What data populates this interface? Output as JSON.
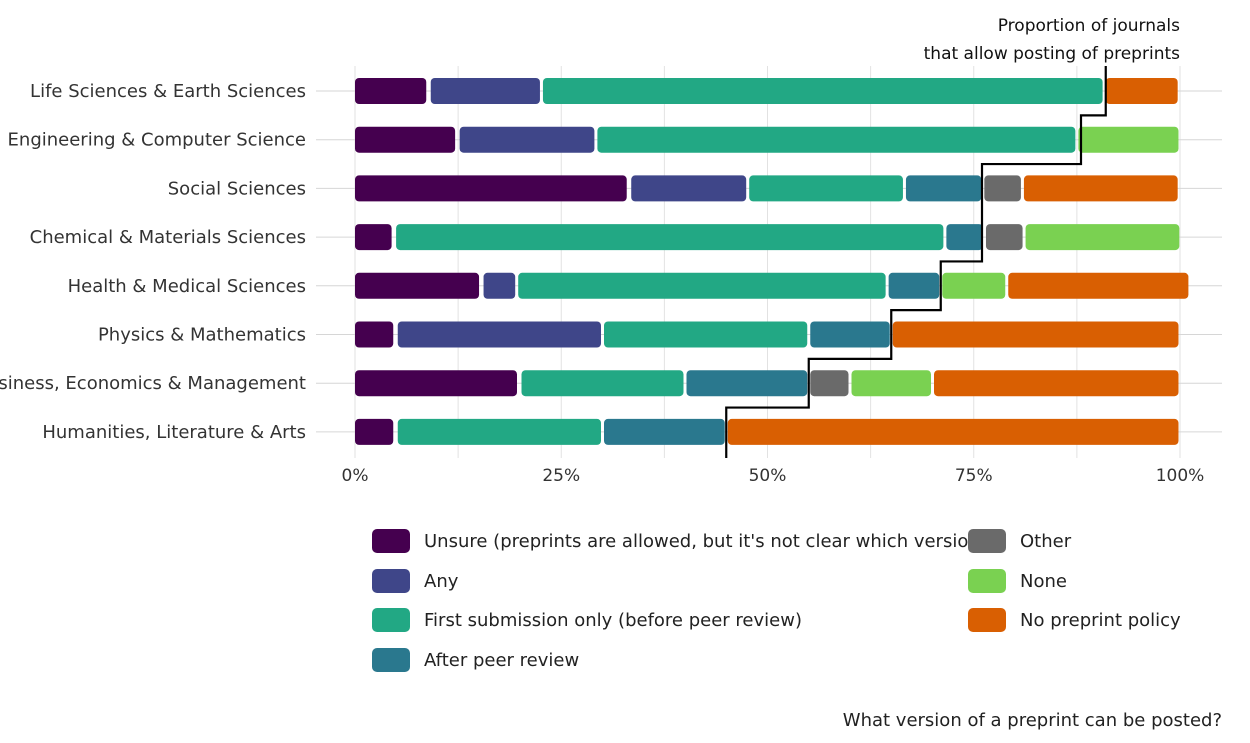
{
  "chart_data": {
    "type": "bar",
    "orientation": "horizontal",
    "stacked": true,
    "categories": [
      "Life Sciences & Earth Sciences",
      "Engineering & Computer Science",
      "Social Sciences",
      "Chemical & Materials Sciences",
      "Health & Medical Sciences",
      "Physics & Mathematics",
      "Business, Economics & Management",
      "Humanities, Literature & Arts"
    ],
    "series": [
      {
        "name": "Unsure (preprints are allowed, but it's not clear which version)",
        "color": "#45004f",
        "values": [
          9,
          12.5,
          33.3,
          4.8,
          15.4,
          5,
          20,
          5
        ]
      },
      {
        "name": "Any",
        "color": "#3f4689",
        "values": [
          13.6,
          16.7,
          14.3,
          0,
          4.2,
          25,
          0,
          0
        ]
      },
      {
        "name": "First submission only (before peer review)",
        "color": "#22a884",
        "values": [
          68.2,
          58.3,
          19,
          66.7,
          44.9,
          25,
          20,
          25
        ]
      },
      {
        "name": "After peer review",
        "color": "#2a788e",
        "values": [
          0,
          0,
          9.5,
          4.8,
          6.5,
          10,
          15,
          15
        ]
      },
      {
        "name": "Other",
        "color": "#6a6a6a",
        "values": [
          0,
          0,
          4.8,
          4.8,
          0,
          0,
          5,
          0
        ]
      },
      {
        "name": "None",
        "color": "#7ad151",
        "values": [
          0,
          12.5,
          0,
          19,
          8,
          0,
          10,
          0
        ]
      },
      {
        "name": "No preprint policy",
        "color": "#d95f02",
        "values": [
          9.1,
          0,
          19,
          0,
          22.2,
          35,
          30,
          55
        ]
      }
    ],
    "allow_proportion": [
      91,
      88,
      76,
      76,
      71,
      65,
      55,
      45
    ],
    "xlim": [
      0,
      100
    ],
    "xticks": [
      0,
      25,
      50,
      75,
      100
    ],
    "xtick_labels": [
      "0%",
      "25%",
      "50%",
      "75%",
      "100%"
    ],
    "grid": "vertical",
    "legend_position": "bottom",
    "annotation": "Proportion of journals\nthat allow posting of preprints",
    "annotation_lines": [
      "Proportion of journals",
      "that allow posting of preprints"
    ],
    "footnote": "What version of a preprint can be posted?"
  }
}
